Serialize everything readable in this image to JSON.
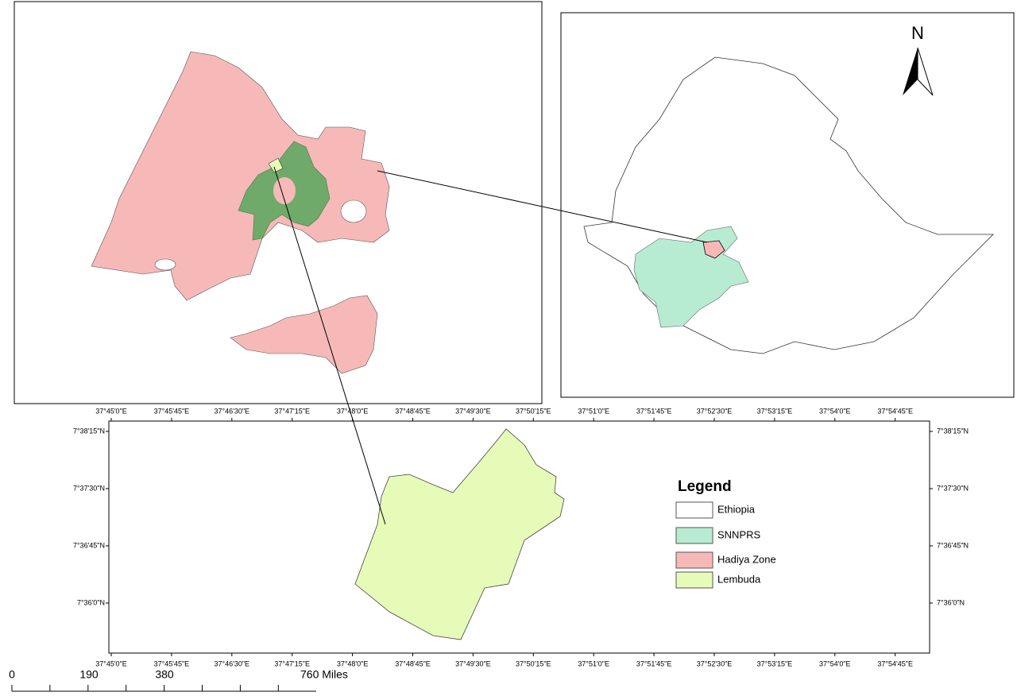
{
  "north_arrow": "N",
  "longitude_labels": [
    "37°45'0\"E",
    "37°45'45\"E",
    "37°46'30\"E",
    "37°47'15\"E",
    "37°48'0\"E",
    "37°48'45\"E",
    "37°49'30\"E",
    "37°50'15\"E",
    "37°51'0\"E",
    "37°51'45\"E",
    "37°52'30\"E",
    "37°53'15\"E",
    "37°54'0\"E",
    "37°54'45\"E"
  ],
  "latitude_labels": [
    "7°38'15\"N",
    "7°37'30\"N",
    "7°36'45\"N",
    "7°36'0\"N"
  ],
  "legend": {
    "title": "Legend",
    "items": [
      {
        "label": "Ethiopia",
        "color": "#ffffff"
      },
      {
        "label": "SNNPRS",
        "color": "#b8ecd2"
      },
      {
        "label": "Hadiya Zone",
        "color": "#f7b9b8"
      },
      {
        "label": "Lembuda",
        "color": "#e6fbb8"
      }
    ]
  },
  "scale_bar": {
    "labels": [
      "0",
      "190",
      "380",
      "760 Miles"
    ]
  }
}
